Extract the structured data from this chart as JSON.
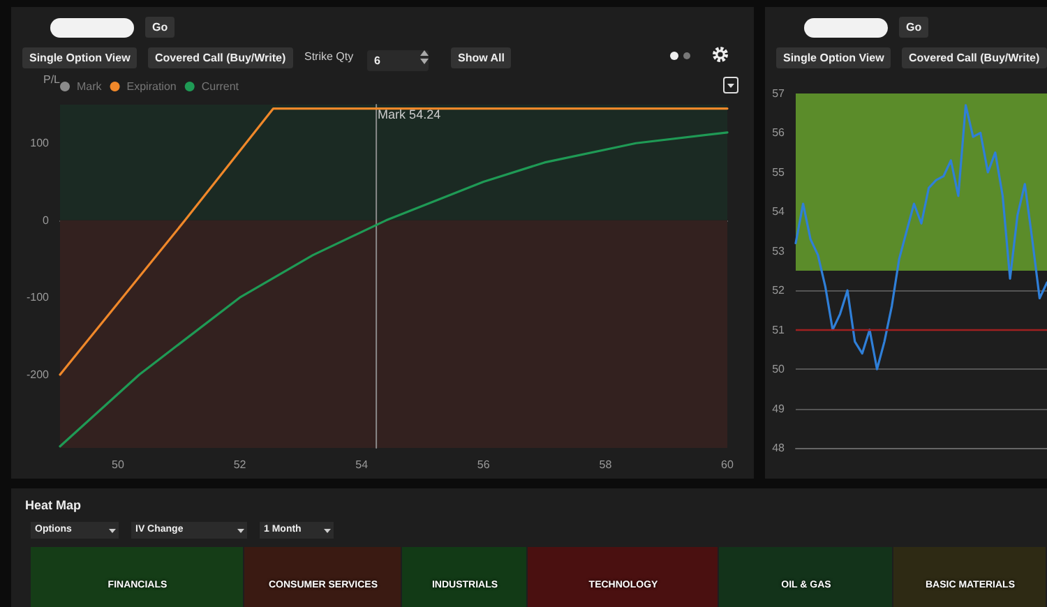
{
  "chart_data": [
    {
      "type": "line",
      "ylabel": "P/L",
      "legend": "top left",
      "grid": "y",
      "xlim": [
        49.05,
        60
      ],
      "xticks": [
        50,
        52,
        54,
        56,
        58,
        60
      ],
      "ylim": [
        -295,
        150
      ],
      "yticks": [
        -200,
        -100,
        0,
        100
      ],
      "series": [
        {
          "name": "Mark",
          "color": "#8a8a8a",
          "x": [
            54.24,
            54.24
          ],
          "values": [
            -295,
            150
          ]
        },
        {
          "name": "Expiration",
          "color": "#f0882a",
          "x": [
            49.05,
            51.1,
            52.55,
            60
          ],
          "values": [
            -200,
            0,
            145,
            145
          ]
        },
        {
          "name": "Current",
          "color": "#1f9a55",
          "x": [
            49.05,
            50.35,
            52.0,
            53.2,
            54.4,
            56,
            57,
            58.5,
            60
          ],
          "values": [
            -293,
            -200,
            -100,
            -45,
            0,
            50,
            75,
            100,
            114
          ]
        }
      ],
      "bands": [
        {
          "axis": "y",
          "from": 0,
          "to": 150,
          "color": "#1b2a23"
        },
        {
          "axis": "y",
          "from": -295,
          "to": 0,
          "color": "#33211f"
        }
      ],
      "annotations": [
        "Go",
        "Single Option View",
        "Covered Call (Buy/Write)",
        "Strike Qty",
        "6",
        "Show All",
        {
          "text": "Mark 54.24",
          "x": 54.24,
          "y": 137
        }
      ]
    },
    {
      "type": "line",
      "grid": "y",
      "tick_labels": "y",
      "ylim": [
        48,
        57
      ],
      "yticks": [
        48,
        49,
        50,
        51,
        52,
        53,
        54,
        55,
        56,
        57
      ],
      "categories": [
        null,
        null,
        null,
        null,
        null,
        null,
        null,
        null,
        null,
        null,
        null,
        null,
        null,
        null,
        null,
        null,
        null,
        null,
        null,
        null,
        null,
        null,
        null,
        null,
        null,
        null,
        null,
        null,
        null,
        null,
        null,
        null,
        null,
        null,
        null
      ],
      "series": [
        {
          "color": "#2f7fd8",
          "values": [
            53.2,
            54.2,
            53.3,
            52.9,
            52.1,
            51.0,
            51.4,
            52.0,
            50.7,
            50.4,
            51.0,
            50.0,
            50.7,
            51.6,
            52.8,
            53.5,
            54.2,
            53.7,
            54.6,
            54.8,
            54.9,
            55.3,
            54.4,
            56.7,
            55.9,
            56.0,
            55.0,
            55.5,
            54.4,
            52.3,
            53.9,
            54.7,
            53.3,
            51.8,
            52.2
          ]
        }
      ],
      "bands": [
        {
          "axis": "y",
          "from": 52.5,
          "to": 57,
          "color": "#5b8c2a"
        }
      ],
      "ref_lines": [
        {
          "axis": "y",
          "value": 51,
          "color": "#a02020"
        }
      ],
      "annotations": [
        "Go",
        "Single Option View",
        "Covered Call (Buy/Write)"
      ]
    },
    {
      "type": "other",
      "title": "Heat Map",
      "categories": [
        "FINANCIALS",
        "CONSUMER SERVICES",
        "INDUSTRIALS",
        "TECHNOLOGY",
        "OIL & GAS",
        "BASIC MATERIALS"
      ],
      "annotations": [
        "Options",
        "IV Change",
        "1 Month"
      ]
    }
  ]
}
